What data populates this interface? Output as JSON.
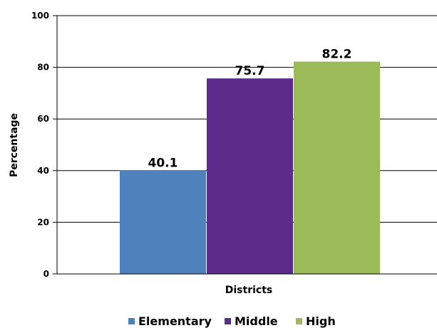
{
  "chart_data": {
    "type": "bar",
    "title": "",
    "xlabel": "Districts",
    "ylabel": "Percentage",
    "ylim": [
      0,
      100
    ],
    "yticks": [
      0,
      20,
      40,
      60,
      80,
      100
    ],
    "grid": true,
    "legend_position": "bottom",
    "categories": [
      ""
    ],
    "series": [
      {
        "name": "Elementary",
        "values": [
          40.1
        ],
        "color": "#4F81BD",
        "label": "40.1"
      },
      {
        "name": "Middle",
        "values": [
          75.7
        ],
        "color": "#5B2C8A",
        "label": "75.7"
      },
      {
        "name": "High",
        "values": [
          82.2
        ],
        "color": "#9BBB59",
        "label": "82.2"
      }
    ]
  }
}
